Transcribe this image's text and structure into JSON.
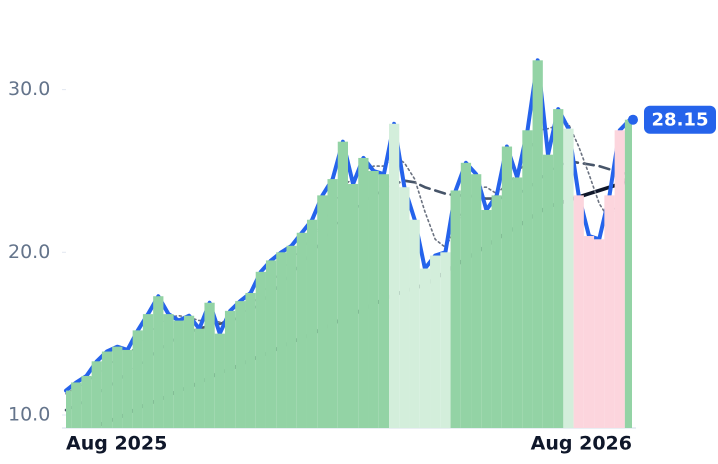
{
  "chart_data": {
    "type": "line",
    "categories": [
      "Aug 2025",
      null,
      null,
      null,
      null,
      null,
      null,
      null,
      null,
      null,
      null,
      null,
      null,
      null,
      null,
      null,
      null,
      null,
      null,
      null,
      null,
      null,
      null,
      null,
      null,
      null,
      null,
      null,
      null,
      null,
      null,
      null,
      null,
      null,
      null,
      null,
      null,
      null,
      null,
      null,
      null,
      null,
      null,
      null,
      null,
      null,
      null,
      null,
      null,
      null,
      null,
      null,
      null,
      null,
      null,
      "Aug 2026"
    ],
    "series": [
      {
        "color": "#2563eb",
        "style": "solid",
        "width": 4,
        "values": [
          11.5,
          12.0,
          12.4,
          13.3,
          13.9,
          14.2,
          14.0,
          15.2,
          16.2,
          17.3,
          16.2,
          15.8,
          16.1,
          15.3,
          16.9,
          15.0,
          16.4,
          17.0,
          17.5,
          18.8,
          19.5,
          20.0,
          20.4,
          21.2,
          22.0,
          23.5,
          24.5,
          26.8,
          24.2,
          25.8,
          25.0,
          24.8,
          27.9,
          24.0,
          22.0,
          19.0,
          19.8,
          20.0,
          23.8,
          25.5,
          24.8,
          22.6,
          23.5,
          26.5,
          24.6,
          27.5,
          31.8,
          26.0,
          28.8,
          27.6,
          23.5,
          21.0,
          20.8,
          23.5,
          27.5,
          28.15
        ]
      },
      {
        "color": "#6b7280",
        "style": "dotted",
        "width": 1.6,
        "values": [
          11.3,
          11.7,
          12.0,
          12.5,
          13.0,
          13.5,
          13.8,
          14.2,
          14.9,
          15.6,
          16.0,
          16.1,
          16.0,
          15.8,
          15.9,
          15.7,
          15.8,
          16.1,
          16.7,
          17.4,
          18.1,
          18.9,
          19.6,
          20.2,
          20.9,
          21.8,
          22.8,
          24.0,
          24.6,
          25.0,
          25.3,
          25.3,
          25.9,
          25.5,
          24.5,
          22.5,
          20.8,
          20.3,
          21.5,
          23.0,
          24.0,
          24.0,
          23.6,
          24.2,
          24.8,
          25.7,
          27.5,
          27.6,
          27.8,
          27.9,
          26.5,
          24.8,
          23.0,
          22.0,
          23.2,
          25.6
        ]
      },
      {
        "color": "#475569",
        "style": "dashed",
        "width": 2.6,
        "values": [
          10.3,
          10.6,
          10.9,
          11.3,
          11.7,
          12.1,
          12.6,
          13.0,
          13.5,
          14.0,
          14.4,
          14.8,
          15.1,
          15.3,
          15.5,
          15.6,
          15.8,
          16.0,
          16.4,
          16.9,
          17.5,
          18.1,
          18.7,
          19.3,
          20.0,
          20.7,
          21.4,
          22.1,
          22.6,
          23.1,
          23.5,
          23.8,
          24.2,
          24.4,
          24.3,
          24.0,
          23.8,
          23.6,
          23.5,
          23.5,
          23.4,
          23.3,
          23.3,
          23.4,
          23.6,
          23.9,
          24.4,
          24.9,
          25.3,
          25.6,
          25.5,
          25.4,
          25.3,
          25.1,
          24.9,
          24.8
        ]
      },
      {
        "color": "#0f172a",
        "style": "solid",
        "width": 3.6,
        "values": [
          null,
          null,
          null,
          9.3,
          9.6,
          9.8,
          10.1,
          10.4,
          10.7,
          10.9,
          11.2,
          11.5,
          11.7,
          12.0,
          12.3,
          12.6,
          12.8,
          13.1,
          13.4,
          13.6,
          13.9,
          14.2,
          14.5,
          14.7,
          15.0,
          15.3,
          15.6,
          15.9,
          16.2,
          16.5,
          16.8,
          17.1,
          17.4,
          17.6,
          17.8,
          18.0,
          18.4,
          18.8,
          19.2,
          19.6,
          20.0,
          20.4,
          20.8,
          21.2,
          21.6,
          22.0,
          22.4,
          22.8,
          23.0,
          23.2,
          23.4,
          23.6,
          23.8,
          24.0,
          24.2,
          24.4
        ]
      }
    ],
    "zones": [
      {
        "start": 0,
        "end": 31,
        "color": "#93d3a5"
      },
      {
        "start": 32,
        "end": 37,
        "color": "#d3eedb"
      },
      {
        "start": 38,
        "end": 48,
        "color": "#93d3a5"
      },
      {
        "start": 49,
        "end": 49,
        "color": "#d3eedb"
      },
      {
        "start": 50,
        "end": 54,
        "color": "#fcd5dd"
      },
      {
        "start": 55,
        "end": 55,
        "color": "#93d3a5"
      }
    ],
    "ylim": [
      9.2,
      33.0
    ],
    "yticks": [
      {
        "value": 10,
        "label": "10.0"
      },
      {
        "value": 20,
        "label": "20.0"
      },
      {
        "value": 30,
        "label": "30.0"
      }
    ]
  }
}
